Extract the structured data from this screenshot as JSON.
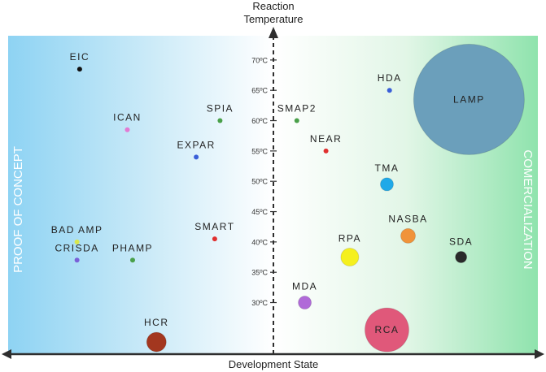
{
  "chart_data": {
    "type": "scatter",
    "title": "",
    "xlabel": "Development State",
    "ylabel": "Reaction Temperature",
    "y_ticks": [
      "70ºC",
      "65ºC",
      "60ºC",
      "55ºC",
      "50ºC",
      "45ºC",
      "40ºC",
      "35ºC",
      "30ºC"
    ],
    "ylim": [
      21.5,
      74
    ],
    "xlim": [
      -10,
      10
    ],
    "left_region_label": "PROOF OF CONCEPT",
    "right_region_label": "COMERCIALIZATION",
    "points": [
      {
        "name": "EIC",
        "x": -7.3,
        "y": 68.5,
        "size": 3,
        "color": "#111111"
      },
      {
        "name": "ICAN",
        "x": -5.5,
        "y": 58.5,
        "size": 3,
        "color": "#e27ad3"
      },
      {
        "name": "SPIA",
        "x": -2.0,
        "y": 60.0,
        "size": 3,
        "color": "#4aa04a"
      },
      {
        "name": "EXPAR",
        "x": -2.9,
        "y": 54.0,
        "size": 3,
        "color": "#3a5fd8"
      },
      {
        "name": "BAD AMP",
        "x": -7.4,
        "y": 40.0,
        "size": 3,
        "color": "#d9e84a"
      },
      {
        "name": "SMART",
        "x": -2.2,
        "y": 40.5,
        "size": 3,
        "color": "#e03030"
      },
      {
        "name": "CRISDA",
        "x": -7.4,
        "y": 37.0,
        "size": 3,
        "color": "#7a60d8"
      },
      {
        "name": "PHAMP",
        "x": -5.3,
        "y": 37.0,
        "size": 3,
        "color": "#4aa04a"
      },
      {
        "name": "HCR",
        "x": -4.4,
        "y": 23.5,
        "size": 12,
        "color": "#a3371f"
      },
      {
        "name": "SMAP2",
        "x": 0.9,
        "y": 60.0,
        "size": 3,
        "color": "#4aa04a"
      },
      {
        "name": "NEAR",
        "x": 2.0,
        "y": 55.0,
        "size": 3,
        "color": "#e03030"
      },
      {
        "name": "HDA",
        "x": 4.4,
        "y": 65.0,
        "size": 3,
        "color": "#3a5fd8"
      },
      {
        "name": "LAMP",
        "x": 7.4,
        "y": 63.5,
        "size": 68,
        "color": "#6b9fbb"
      },
      {
        "name": "TMA",
        "x": 4.3,
        "y": 49.5,
        "size": 8,
        "color": "#1fa9e8"
      },
      {
        "name": "NASBA",
        "x": 5.1,
        "y": 41.0,
        "size": 9,
        "color": "#f0933a"
      },
      {
        "name": "RPA",
        "x": 2.9,
        "y": 37.5,
        "size": 11,
        "color": "#f5f01e"
      },
      {
        "name": "SDA",
        "x": 7.1,
        "y": 37.5,
        "size": 7,
        "color": "#2a2a2a"
      },
      {
        "name": "MDA",
        "x": 1.2,
        "y": 30.0,
        "size": 8,
        "color": "#b06ad8"
      },
      {
        "name": "RCA",
        "x": 4.3,
        "y": 25.5,
        "size": 27,
        "color": "#e0587a"
      }
    ],
    "grid": false,
    "legend": "none"
  }
}
